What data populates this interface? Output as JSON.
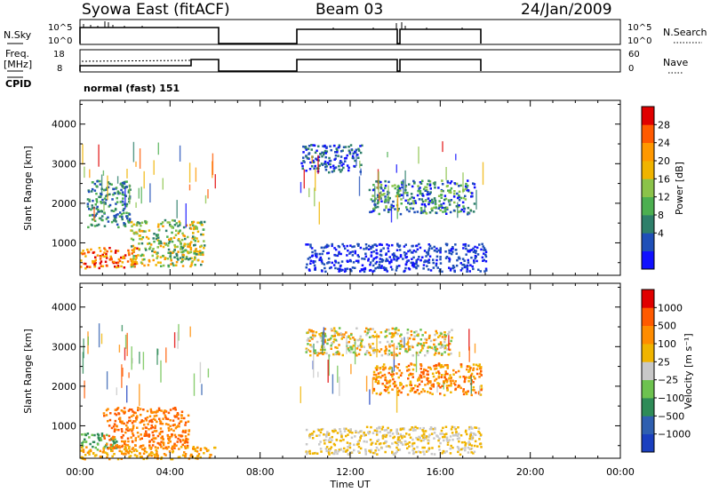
{
  "header": {
    "station": "Syowa East (fitACF)",
    "beam": "Beam 03",
    "date": "24/Jan/2009"
  },
  "strips": {
    "nsky_label": "N.Sky",
    "nsearch_label": "N.Search",
    "nsky_ticks": [
      "10^5",
      "10^0"
    ],
    "freq_label_line1": "Freq.",
    "freq_label_line2": "[MHz]",
    "freq_ticks": [
      "18",
      "8"
    ],
    "nave_label": "Nave",
    "nave_ticks": [
      "60",
      "0"
    ],
    "cpid_label": "CPID",
    "cpid_value": "normal (fast) 151"
  },
  "colors": {
    "power_scale": [
      "#1010ff",
      "#1f4fb8",
      "#2e7f6a",
      "#4caf50",
      "#8bc34a",
      "#f0b400",
      "#ff9800",
      "#ff5a00",
      "#e00000"
    ],
    "velocity_scale": [
      "#1a3fbf",
      "#2f5fb0",
      "#2e8b57",
      "#6dc24f",
      "#c8c8c8",
      "#f0b400",
      "#ff8c00",
      "#ff5a00",
      "#e00000"
    ]
  },
  "chart_data": {
    "type": "heatmap",
    "xlabel": "Time UT",
    "x_ticks": [
      "00:00",
      "04:00",
      "08:00",
      "12:00",
      "16:00",
      "20:00",
      "00:00"
    ],
    "xlim_hours": [
      0,
      24
    ],
    "ylabel": "Slant Range [km]",
    "y_ticks": [
      1000,
      2000,
      3000,
      4000
    ],
    "ylim_km": [
      180,
      4600
    ],
    "panels": [
      {
        "name": "power",
        "colorbar_label": "Power [dB]",
        "colorbar_ticks": [
          "28",
          "24",
          "20",
          "16",
          "12",
          "8",
          "4"
        ],
        "data_blocks_hours": [
          [
            0,
            6.1
          ],
          [
            9.6,
            18
          ]
        ],
        "regions": [
          {
            "t": [
              0,
              2.6
            ],
            "r": [
              380,
              900
            ],
            "level": [
              5,
              8
            ]
          },
          {
            "t": [
              2.2,
              5.5
            ],
            "r": [
              420,
              1600
            ],
            "level": [
              2,
              6
            ]
          },
          {
            "t": [
              0.3,
              2.2
            ],
            "r": [
              1400,
              2600
            ],
            "level": [
              1,
              3
            ]
          },
          {
            "t": [
              12.8,
              17.5
            ],
            "r": [
              1750,
              2600
            ],
            "level": [
              0,
              4
            ]
          },
          {
            "t": [
              9.8,
              12.5
            ],
            "r": [
              2800,
              3500
            ],
            "level": [
              0,
              2
            ]
          },
          {
            "t": [
              10,
              18
            ],
            "r": [
              300,
              1000
            ],
            "level": [
              0,
              1
            ]
          }
        ]
      },
      {
        "name": "velocity",
        "colorbar_label": "Velocity [m s⁻¹]",
        "colorbar_ticks": [
          "1000",
          "500",
          "100",
          "25",
          "−25",
          "−100",
          "−500",
          "−1000"
        ],
        "data_blocks_hours": [
          [
            0,
            6.1
          ],
          [
            9.6,
            18
          ]
        ],
        "regions": [
          {
            "t": [
              0,
              1.6
            ],
            "r": [
              420,
              850
            ],
            "level": [
              2,
              3
            ]
          },
          {
            "t": [
              1,
              4.8
            ],
            "r": [
              420,
              1500
            ],
            "level": [
              6,
              7
            ]
          },
          {
            "t": [
              0,
              6
            ],
            "r": [
              180,
              500
            ],
            "level": [
              5,
              6
            ]
          },
          {
            "t": [
              13,
              17.8
            ],
            "r": [
              1800,
              2600
            ],
            "level": [
              5,
              7
            ]
          },
          {
            "t": [
              10,
              17.8
            ],
            "r": [
              300,
              1000
            ],
            "level": [
              4,
              5
            ]
          },
          {
            "t": [
              10,
              16.5
            ],
            "r": [
              2800,
              3500
            ],
            "level": [
              3,
              6
            ]
          }
        ]
      }
    ]
  }
}
